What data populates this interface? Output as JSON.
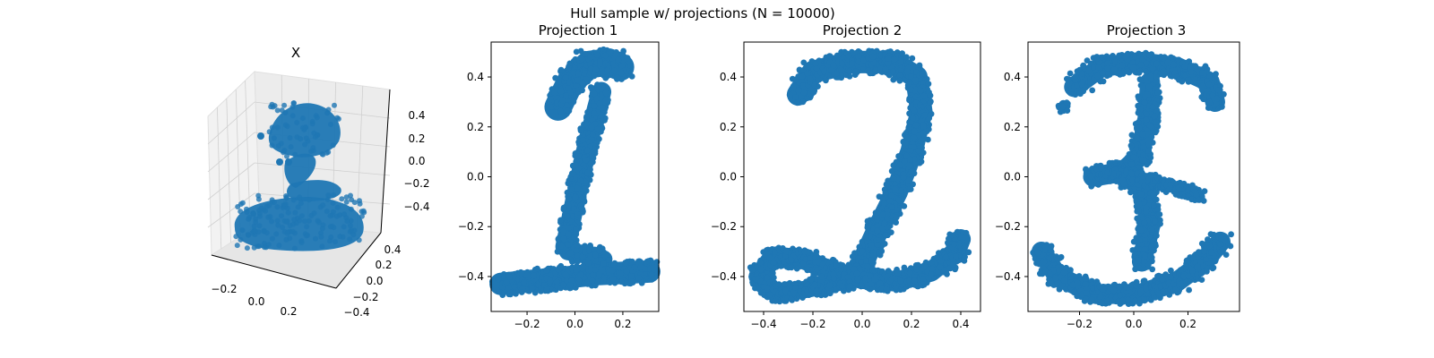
{
  "figure": {
    "suptitle": "Hull sample w/ projections (N = 10000)"
  },
  "colors": {
    "points": "#1f77b4",
    "axes": "#000000",
    "pane": "#f2f2f2",
    "grid": "#d0d0d0"
  },
  "chart_data": [
    {
      "type": "scatter",
      "title": "X",
      "projection": "3d",
      "x_ticks": [
        "−0.2",
        "0.0",
        "0.2"
      ],
      "y_ticks": [
        "−0.4",
        "−0.2",
        "0.0",
        "0.2",
        "0.4"
      ],
      "z_ticks": [
        "−0.4",
        "−0.2",
        "0.0",
        "0.2",
        "0.4"
      ],
      "grid": true
    },
    {
      "type": "scatter",
      "title": "Projection 1",
      "shape": "digit 1",
      "xlim": [
        -0.35,
        0.35
      ],
      "ylim": [
        -0.54,
        0.54
      ],
      "x_ticks": [
        -0.2,
        0.0,
        0.2
      ],
      "x_tick_labels": [
        "−0.2",
        "0.0",
        "0.2"
      ],
      "y_ticks": [
        -0.4,
        -0.2,
        0.0,
        0.2,
        0.4
      ],
      "y_tick_labels": [
        "−0.4",
        "−0.2",
        "0.0",
        "0.2",
        "0.4"
      ],
      "strokes": [
        {
          "points": [
            [
              -0.07,
              0.28
            ],
            [
              -0.02,
              0.38
            ],
            [
              0.06,
              0.45
            ],
            [
              0.14,
              0.46
            ],
            [
              0.19,
              0.44
            ]
          ],
          "width": 0.11
        },
        {
          "points": [
            [
              0.11,
              0.34
            ],
            [
              0.05,
              0.12
            ],
            [
              0.0,
              -0.1
            ],
            [
              -0.04,
              -0.28
            ]
          ],
          "width": 0.08
        },
        {
          "points": [
            [
              -0.31,
              -0.43
            ],
            [
              -0.1,
              -0.41
            ],
            [
              0.1,
              -0.39
            ],
            [
              0.31,
              -0.38
            ]
          ],
          "width": 0.09
        },
        {
          "points": [
            [
              -0.03,
              -0.3
            ],
            [
              0.05,
              -0.31
            ],
            [
              0.12,
              -0.33
            ]
          ],
          "width": 0.07
        }
      ]
    },
    {
      "type": "scatter",
      "title": "Projection 2",
      "shape": "digit 2",
      "xlim": [
        -0.48,
        0.48
      ],
      "ylim": [
        -0.54,
        0.54
      ],
      "x_ticks": [
        -0.4,
        -0.2,
        0.0,
        0.2,
        0.4
      ],
      "x_tick_labels": [
        "−0.4",
        "−0.2",
        "0.0",
        "0.2",
        "0.4"
      ],
      "y_ticks": [
        -0.4,
        -0.2,
        0.0,
        0.2,
        0.4
      ],
      "y_tick_labels": [
        "−0.4",
        "−0.2",
        "0.0",
        "0.2",
        "0.4"
      ],
      "strokes": [
        {
          "points": [
            [
              -0.26,
              0.33
            ],
            [
              -0.2,
              0.42
            ],
            [
              -0.04,
              0.46
            ],
            [
              0.12,
              0.46
            ],
            [
              0.22,
              0.4
            ],
            [
              0.24,
              0.26
            ],
            [
              0.2,
              0.1
            ],
            [
              0.14,
              -0.06
            ],
            [
              0.06,
              -0.22
            ],
            [
              0.0,
              -0.35
            ]
          ],
          "width": 0.09
        },
        {
          "points": [
            [
              -0.42,
              -0.4
            ],
            [
              -0.36,
              -0.32
            ],
            [
              -0.24,
              -0.33
            ],
            [
              -0.12,
              -0.38
            ],
            [
              0.0,
              -0.41
            ],
            [
              0.14,
              -0.42
            ],
            [
              0.28,
              -0.38
            ],
            [
              0.38,
              -0.3
            ],
            [
              0.4,
              -0.25
            ]
          ],
          "width": 0.08
        },
        {
          "points": [
            [
              -0.42,
              -0.4
            ],
            [
              -0.35,
              -0.47
            ],
            [
              -0.22,
              -0.45
            ],
            [
              -0.08,
              -0.42
            ]
          ],
          "width": 0.07
        }
      ]
    },
    {
      "type": "scatter",
      "title": "Projection 3",
      "shape": "digit 3",
      "xlim": [
        -0.39,
        0.39
      ],
      "ylim": [
        -0.54,
        0.54
      ],
      "x_ticks": [
        -0.2,
        0.0,
        0.2
      ],
      "x_tick_labels": [
        "−0.2",
        "0.0",
        "0.2"
      ],
      "y_ticks": [
        -0.4,
        -0.2,
        0.0,
        0.2,
        0.4
      ],
      "y_tick_labels": [
        "−0.4",
        "−0.2",
        "0.0",
        "0.2",
        "0.4"
      ],
      "strokes": [
        {
          "points": [
            [
              -0.22,
              0.36
            ],
            [
              -0.12,
              0.44
            ],
            [
              0.02,
              0.46
            ],
            [
              0.16,
              0.44
            ],
            [
              0.28,
              0.38
            ],
            [
              0.3,
              0.3
            ]
          ],
          "width": 0.08
        },
        {
          "points": [
            [
              0.06,
              0.38
            ],
            [
              0.05,
              0.22
            ],
            [
              0.02,
              0.08
            ],
            [
              -0.04,
              0.02
            ],
            [
              -0.15,
              0.0
            ]
          ],
          "width": 0.08
        },
        {
          "points": [
            [
              -0.04,
              0.02
            ],
            [
              0.04,
              -0.06
            ],
            [
              0.06,
              -0.2
            ],
            [
              0.03,
              -0.34
            ]
          ],
          "width": 0.08
        },
        {
          "points": [
            [
              -0.14,
              0.02
            ],
            [
              -0.04,
              0.0
            ],
            [
              0.05,
              -0.01
            ],
            [
              0.18,
              -0.05
            ],
            [
              0.24,
              -0.08
            ]
          ],
          "width": 0.05
        },
        {
          "points": [
            [
              -0.34,
              -0.3
            ],
            [
              -0.28,
              -0.4
            ],
            [
              -0.14,
              -0.47
            ],
            [
              0.02,
              -0.47
            ],
            [
              0.16,
              -0.42
            ],
            [
              0.26,
              -0.34
            ],
            [
              0.32,
              -0.26
            ]
          ],
          "width": 0.08
        },
        {
          "points": [
            [
              -0.26,
              0.27
            ],
            [
              -0.26,
              0.29
            ]
          ],
          "width": 0.035
        }
      ]
    }
  ]
}
